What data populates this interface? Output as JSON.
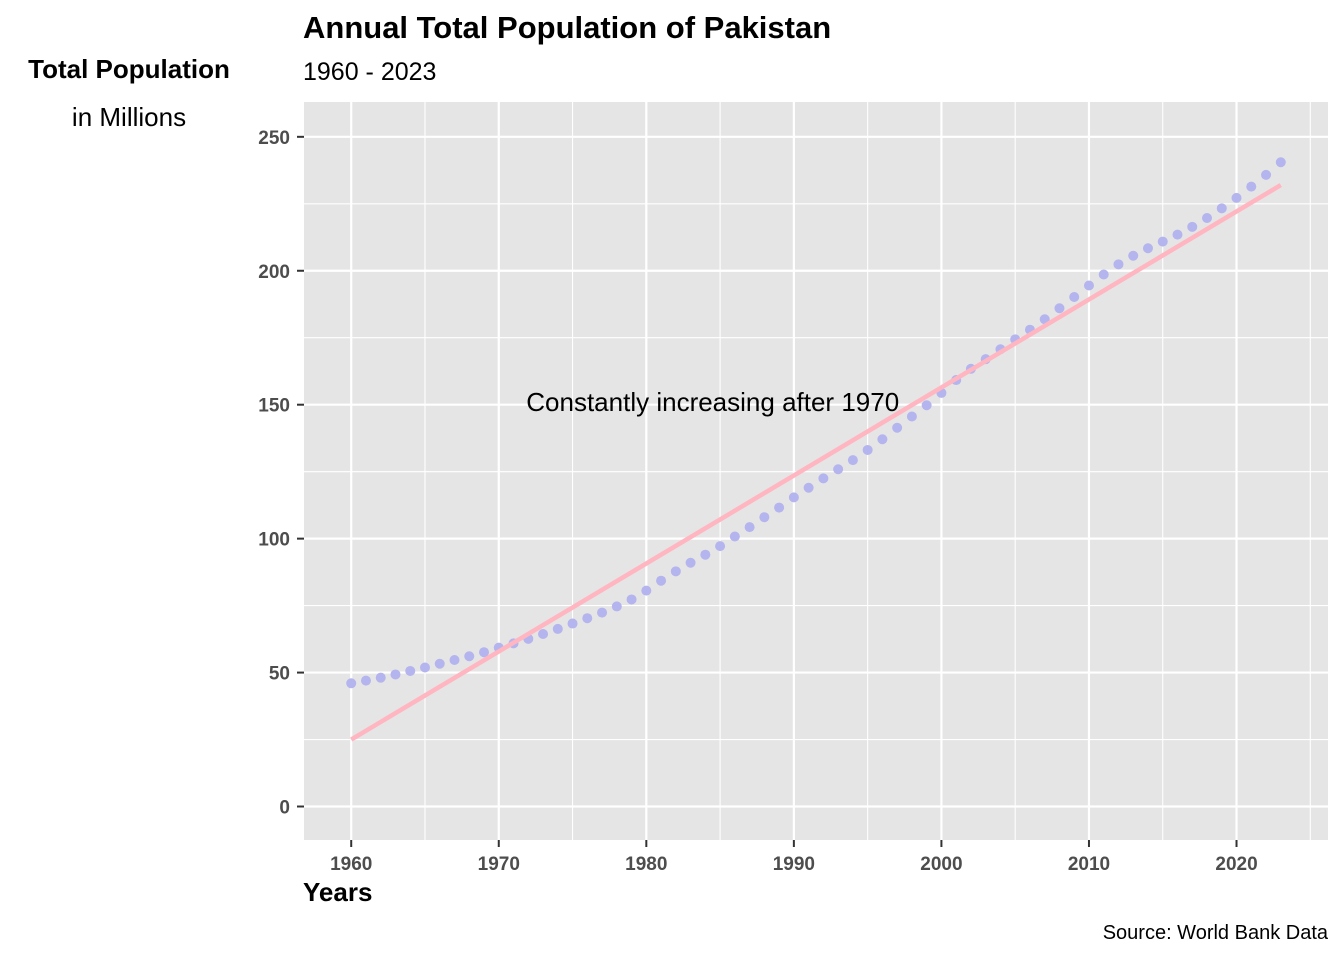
{
  "chart_data": {
    "type": "scatter",
    "title": "Annual Total Population of Pakistan",
    "subtitle": "1960 - 2023",
    "ylabel_line1": "Total Population",
    "ylabel_line2": "in Millions",
    "xlabel": "Years",
    "caption": "Source: World Bank Data",
    "annotation": {
      "text": "Constantly increasing after 1970",
      "x": 1984.5,
      "y": 151
    },
    "xlim": [
      1956.8,
      2026.2
    ],
    "ylim": [
      -12.5,
      263
    ],
    "x_ticks": [
      1960,
      1970,
      1980,
      1990,
      2000,
      2010,
      2020
    ],
    "y_ticks": [
      0,
      50,
      100,
      150,
      200,
      250
    ],
    "grid": true,
    "point_color": "#b4b4ee",
    "trend_color": "#ffb6c1",
    "panel_color": "#e5e5e5",
    "trend_line": {
      "x": [
        1960,
        2023
      ],
      "y": [
        25,
        232
      ]
    },
    "series": [
      {
        "x": [
          1960,
          1961,
          1962,
          1963,
          1964,
          1965,
          1966,
          1967,
          1968,
          1969,
          1970,
          1971,
          1972,
          1973,
          1974,
          1975,
          1976,
          1977,
          1978,
          1979,
          1980,
          1981,
          1982,
          1983,
          1984,
          1985,
          1986,
          1987,
          1988,
          1989,
          1990,
          1991,
          1992,
          1993,
          1994,
          1995,
          1996,
          1997,
          1998,
          1999,
          2000,
          2001,
          2002,
          2003,
          2004,
          2005,
          2006,
          2007,
          2008,
          2009,
          2010,
          2011,
          2012,
          2013,
          2014,
          2015,
          2016,
          2017,
          2018,
          2019,
          2020,
          2021,
          2022,
          2023
        ],
        "y": [
          46.0,
          47.0,
          48.1,
          49.3,
          50.6,
          51.9,
          53.3,
          54.7,
          56.1,
          57.6,
          59.3,
          60.9,
          62.6,
          64.4,
          66.3,
          68.3,
          70.3,
          72.4,
          74.7,
          77.3,
          80.6,
          84.3,
          87.8,
          91.0,
          94.0,
          97.2,
          100.8,
          104.3,
          108.0,
          111.6,
          115.4,
          119.0,
          122.5,
          125.9,
          129.3,
          133.1,
          137.1,
          141.4,
          145.6,
          149.8,
          154.4,
          159.2,
          163.4,
          167.0,
          170.7,
          174.4,
          178.0,
          181.9,
          186.0,
          190.2,
          194.5,
          198.6,
          202.4,
          205.6,
          208.4,
          210.9,
          213.5,
          216.4,
          219.7,
          223.3,
          227.2,
          231.4,
          235.8,
          240.5
        ]
      }
    ]
  }
}
